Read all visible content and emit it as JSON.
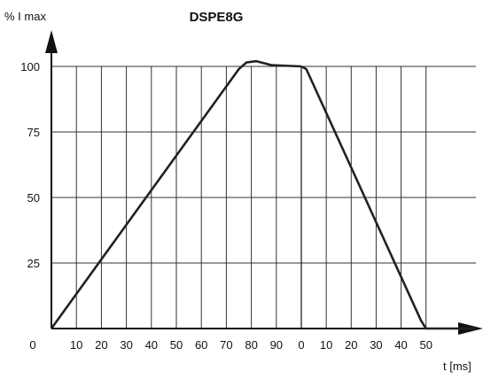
{
  "chart_data": {
    "type": "line",
    "title": "DSPE8G",
    "ylabel": "% I max",
    "xlabel": "t [ms]",
    "origin_label": "0",
    "ylim": [
      0,
      100
    ],
    "y_ticks": [
      25,
      50,
      75,
      100
    ],
    "y_tick_labels": [
      "25",
      "50",
      "75",
      "100"
    ],
    "x_segments": [
      {
        "name": "rise",
        "xlim": [
          0,
          100
        ],
        "ticks": [
          10,
          20,
          30,
          40,
          50,
          60,
          70,
          80,
          90
        ],
        "tick_labels": [
          "10",
          "20",
          "30",
          "40",
          "50",
          "60",
          "70",
          "80",
          "90"
        ]
      },
      {
        "name": "fall",
        "xlim": [
          0,
          70
        ],
        "ticks": [
          0,
          10,
          20,
          30,
          40,
          50
        ],
        "tick_labels": [
          "0",
          "10",
          "20",
          "30",
          "40",
          "50"
        ]
      }
    ],
    "grid": true,
    "colors": {
      "line": "#222222",
      "grid": "#333333",
      "axis": "#111111"
    },
    "series": [
      {
        "points_rise": [
          [
            0,
            0
          ],
          [
            75,
            99
          ],
          [
            78,
            101.5
          ],
          [
            82,
            102
          ],
          [
            88,
            100.5
          ],
          [
            100,
            100
          ]
        ],
        "points_fall": [
          [
            0,
            100
          ],
          [
            2,
            99
          ],
          [
            48,
            3
          ],
          [
            50,
            0
          ],
          [
            70,
            0
          ]
        ]
      }
    ]
  }
}
